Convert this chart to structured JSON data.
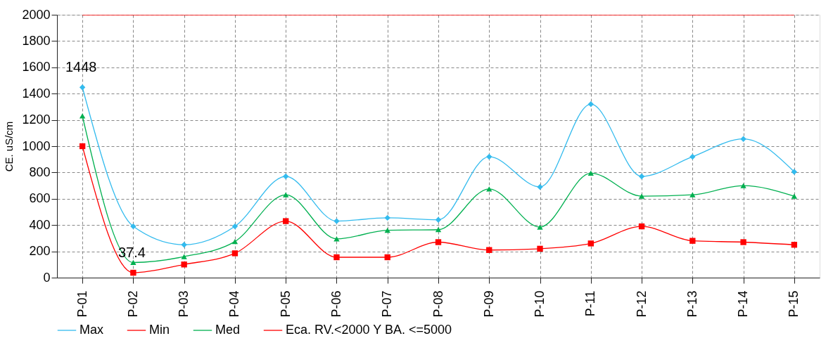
{
  "chart_data": {
    "type": "line",
    "ylabel": "CE. uS/cm",
    "categories": [
      "P-01",
      "P-02",
      "P-03",
      "P-04",
      "P-05",
      "P-06",
      "P-07",
      "P-08",
      "P-09",
      "P-10",
      "P-11",
      "P-12",
      "P-13",
      "P-14",
      "P-15"
    ],
    "ylim": [
      0,
      2000
    ],
    "yticks": [
      0,
      200,
      400,
      600,
      800,
      1000,
      1200,
      1400,
      1600,
      1800,
      2000
    ],
    "grid": true,
    "legend": "bottom",
    "series": [
      {
        "name": "Max",
        "color": "#33bbee",
        "marker": "diamond",
        "values": [
          1448,
          390,
          250,
          390,
          770,
          430,
          455,
          440,
          920,
          690,
          1320,
          770,
          920,
          1055,
          805
        ],
        "value_labels": [
          "1448",
          null,
          null,
          null,
          null,
          null,
          null,
          null,
          null,
          null,
          null,
          null,
          null,
          null,
          null
        ]
      },
      {
        "name": "Min",
        "color": "#ff0000",
        "marker": "square",
        "values": [
          1000,
          37.4,
          100,
          185,
          430,
          155,
          155,
          270,
          210,
          220,
          260,
          390,
          280,
          270,
          250
        ],
        "value_labels": [
          null,
          "37.4",
          null,
          null,
          null,
          null,
          null,
          null,
          null,
          null,
          null,
          null,
          null,
          null,
          null
        ]
      },
      {
        "name": "Med",
        "color": "#00b050",
        "marker": "triangle",
        "values": [
          1230,
          115,
          160,
          275,
          630,
          295,
          360,
          365,
          675,
          385,
          795,
          620,
          630,
          700,
          620
        ]
      },
      {
        "name": "Eca. RV.<2000  Y BA. <=5000",
        "color": "#ff0000",
        "marker": "none",
        "values": [
          2000,
          2000,
          2000,
          2000,
          2000,
          2000,
          2000,
          2000,
          2000,
          2000,
          2000,
          2000,
          2000,
          2000,
          2000
        ]
      }
    ]
  }
}
